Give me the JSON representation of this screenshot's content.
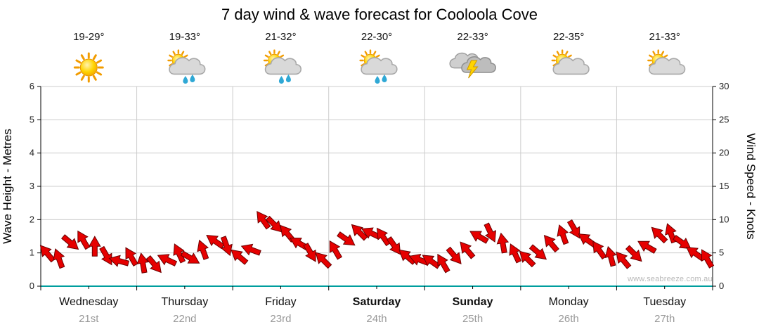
{
  "title": "7 day wind & wave forecast for Cooloola Cove",
  "watermark": "www.seabreeze.com.au",
  "days": [
    {
      "name": "Wednesday",
      "date": "21st",
      "temp": "19-29°",
      "icon": "sunny",
      "bold": false
    },
    {
      "name": "Thursday",
      "date": "22nd",
      "temp": "19-33°",
      "icon": "sun-cloud-rain",
      "bold": false
    },
    {
      "name": "Friday",
      "date": "23rd",
      "temp": "21-32°",
      "icon": "sun-cloud-rain",
      "bold": false
    },
    {
      "name": "Saturday",
      "date": "24th",
      "temp": "22-30°",
      "icon": "sun-cloud-rain",
      "bold": true
    },
    {
      "name": "Sunday",
      "date": "25th",
      "temp": "22-33°",
      "icon": "thunderstorm",
      "bold": true
    },
    {
      "name": "Monday",
      "date": "26th",
      "temp": "22-35°",
      "icon": "sun-cloud",
      "bold": false
    },
    {
      "name": "Tuesday",
      "date": "27th",
      "temp": "21-33°",
      "icon": "sun-cloud",
      "bold": false
    }
  ],
  "chart_data": {
    "type": "scatter",
    "title": "7 day wind & wave forecast for Cooloola Cove",
    "categories": [
      "Wednesday",
      "Thursday",
      "Friday",
      "Saturday",
      "Sunday",
      "Monday",
      "Tuesday"
    ],
    "points_per_day": 8,
    "left_axis": {
      "label": "Wave Height - Metres",
      "min": 0,
      "max": 6,
      "ticks": [
        0,
        1,
        2,
        3,
        4,
        5,
        6
      ]
    },
    "right_axis": {
      "label": "Wind Speed - Knots",
      "min": 0,
      "max": 30,
      "ticks": [
        0,
        5,
        10,
        15,
        20,
        25,
        30
      ]
    },
    "grid": true,
    "series": [
      {
        "name": "Wind speed & direction",
        "marker": "arrow",
        "color": "#e60000",
        "knots": [
          5.0,
          4.2,
          6.5,
          7.0,
          6.0,
          4.5,
          3.8,
          4.5,
          3.5,
          3.2,
          4.0,
          5.0,
          4.2,
          5.5,
          6.8,
          6.0,
          4.5,
          5.5,
          10.0,
          9.2,
          8.0,
          6.5,
          5.0,
          4.0,
          5.5,
          7.0,
          8.2,
          8.0,
          7.5,
          6.0,
          4.5,
          4.0,
          3.8,
          3.5,
          4.5,
          5.5,
          7.5,
          8.0,
          6.5,
          5.0,
          4.2,
          5.0,
          6.5,
          7.8,
          8.5,
          7.0,
          5.5,
          4.5,
          4.0,
          4.8,
          6.0,
          7.8,
          8.0,
          6.5,
          5.0,
          4.2
        ],
        "dir_deg": [
          230,
          250,
          40,
          240,
          270,
          60,
          195,
          240,
          260,
          50,
          205,
          245,
          30,
          250,
          215,
          70,
          220,
          200,
          235,
          45,
          230,
          210,
          60,
          225,
          240,
          35,
          225,
          205,
          235,
          55,
          220,
          200,
          215,
          240,
          50,
          230,
          210,
          65,
          260,
          245,
          225,
          40,
          230,
          250,
          60,
          215,
          235,
          255,
          230,
          45,
          210,
          225,
          250,
          35,
          215,
          240
        ]
      }
    ]
  }
}
